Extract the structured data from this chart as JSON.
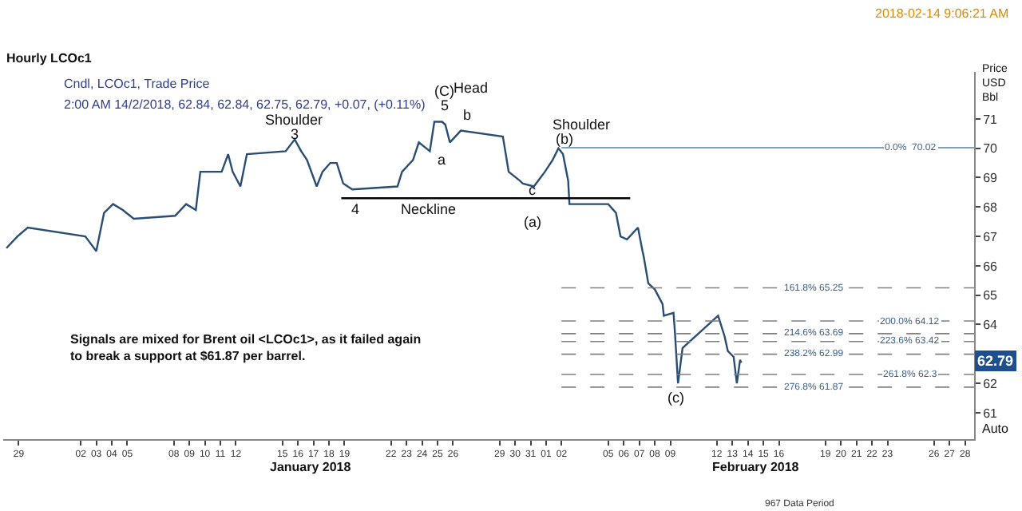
{
  "chart_data": {
    "type": "line",
    "title": "Hourly LCOc1",
    "subtitle": "Cndl, LCOc1, Trade Price",
    "ylabel": "Price USD Bbl",
    "xlim": [
      "2017-12-28T00:00",
      "2018-02-28T14:00"
    ],
    "ylim": [
      60.1,
      72.6
    ],
    "yticks": [
      61,
      62,
      {
        "value": 63,
        "label": null
      },
      64,
      65,
      66,
      67,
      68,
      69,
      70,
      71
    ],
    "xticks": [
      {
        "value": "2017-12-29",
        "label": "29"
      },
      {
        "value": "2018-01-02",
        "label": "02"
      },
      {
        "value": "2018-01-03",
        "label": "03"
      },
      {
        "value": "2018-01-04",
        "label": "04"
      },
      {
        "value": "2018-01-05",
        "label": "05"
      },
      {
        "value": "2018-01-08",
        "label": "08"
      },
      {
        "value": "2018-01-09",
        "label": "09"
      },
      {
        "value": "2018-01-10",
        "label": "10"
      },
      {
        "value": "2018-01-11",
        "label": "11"
      },
      {
        "value": "2018-01-12",
        "label": "12"
      },
      {
        "value": "2018-01-15",
        "label": "15"
      },
      {
        "value": "2018-01-16",
        "label": "16"
      },
      {
        "value": "2018-01-17",
        "label": "17"
      },
      {
        "value": "2018-01-18",
        "label": "18"
      },
      {
        "value": "2018-01-19",
        "label": "19"
      },
      {
        "value": "2018-01-22",
        "label": "22"
      },
      {
        "value": "2018-01-23",
        "label": "23"
      },
      {
        "value": "2018-01-24",
        "label": "24"
      },
      {
        "value": "2018-01-25",
        "label": "25"
      },
      {
        "value": "2018-01-26",
        "label": "26"
      },
      {
        "value": "2018-01-29",
        "label": "29"
      },
      {
        "value": "2018-01-30",
        "label": "30"
      },
      {
        "value": "2018-01-31",
        "label": "31"
      },
      {
        "value": "2018-02-01",
        "label": "01"
      },
      {
        "value": "2018-02-02",
        "label": "02"
      },
      {
        "value": "2018-02-05",
        "label": "05"
      },
      {
        "value": "2018-02-06",
        "label": "06"
      },
      {
        "value": "2018-02-07",
        "label": "07"
      },
      {
        "value": "2018-02-08",
        "label": "08"
      },
      {
        "value": "2018-02-09",
        "label": "09"
      },
      {
        "value": "2018-02-12",
        "label": "12"
      },
      {
        "value": "2018-02-13",
        "label": "13"
      },
      {
        "value": "2018-02-14",
        "label": "14"
      },
      {
        "value": "2018-02-15",
        "label": "15"
      },
      {
        "value": "2018-02-16",
        "label": "16"
      },
      {
        "value": "2018-02-19",
        "label": "19"
      },
      {
        "value": "2018-02-20",
        "label": "20"
      },
      {
        "value": "2018-02-21",
        "label": "21"
      },
      {
        "value": "2018-02-22",
        "label": "22"
      },
      {
        "value": "2018-02-23",
        "label": "23"
      },
      {
        "value": "2018-02-26",
        "label": "26"
      },
      {
        "value": "2018-02-27",
        "label": "27"
      },
      {
        "value": "2018-02-28",
        "label": "28"
      }
    ],
    "marker": "none",
    "line_style": "solid",
    "series": [
      {
        "color": "#2a4e73",
        "x": [
          "2017-12-28T05:00",
          "2017-12-28T22:00",
          "2017-12-29T14:00",
          "2018-01-02T07:00",
          "2018-01-03T00:00",
          "2018-01-03T12:00",
          "2018-01-04T02:00",
          "2018-01-04T17:00",
          "2018-01-05T10:00",
          "2018-01-08T02:00",
          "2018-01-08T19:00",
          "2018-01-09T10:00",
          "2018-01-09T17:00",
          "2018-01-10T10:00",
          "2018-01-11T02:00",
          "2018-01-11T12:00",
          "2018-01-11T19:00",
          "2018-01-12T07:00",
          "2018-01-12T17:00",
          "2018-01-15T05:00",
          "2018-01-15T19:00",
          "2018-01-16T05:00",
          "2018-01-16T14:00",
          "2018-01-17T05:00",
          "2018-01-17T14:00",
          "2018-01-18T02:00",
          "2018-01-18T12:00",
          "2018-01-18T22:00",
          "2018-01-19T12:00",
          "2018-01-22T10:00",
          "2018-01-22T17:00",
          "2018-01-23T10:00",
          "2018-01-23T19:00",
          "2018-01-24T12:00",
          "2018-01-24T19:00",
          "2018-01-25T07:00",
          "2018-01-25T12:00",
          "2018-01-25T19:00",
          "2018-01-26T12:00",
          "2018-01-29T05:00",
          "2018-01-29T14:00",
          "2018-01-30T07:00",
          "2018-01-30T12:00",
          "2018-01-31T05:00",
          "2018-01-31T22:00",
          "2018-02-01T10:00",
          "2018-02-01T19:00",
          "2018-02-02T02:00",
          "2018-02-02T10:00",
          "2018-02-02T12:00",
          "2018-02-05T00:00",
          "2018-02-05T12:00",
          "2018-02-05T19:00",
          "2018-02-06T05:00",
          "2018-02-06T22:00",
          "2018-02-07T05:00",
          "2018-02-07T07:00",
          "2018-02-07T14:00",
          "2018-02-08T00:00",
          "2018-02-08T12:00",
          "2018-02-08T14:00",
          "2018-02-09T05:00",
          "2018-02-09T07:00",
          "2018-02-09T12:00",
          "2018-02-09T19:00",
          "2018-02-12T02:00",
          "2018-02-12T12:00",
          "2018-02-12T17:00",
          "2018-02-13T02:00",
          "2018-02-13T07:00",
          "2018-02-13T12:00",
          "2018-02-13T14:00"
        ],
        "values": [
          66.6,
          67.0,
          67.3,
          67.0,
          66.5,
          67.8,
          68.1,
          67.9,
          67.6,
          67.7,
          68.1,
          67.9,
          69.2,
          69.2,
          69.2,
          69.8,
          69.2,
          68.7,
          69.8,
          69.9,
          70.3,
          69.9,
          69.6,
          68.7,
          69.2,
          69.5,
          69.5,
          68.8,
          68.6,
          68.7,
          69.2,
          69.6,
          70.2,
          69.9,
          70.9,
          70.9,
          70.8,
          70.2,
          70.6,
          70.4,
          69.2,
          68.9,
          68.8,
          68.7,
          69.2,
          69.6,
          70.0,
          69.8,
          68.9,
          68.1,
          68.1,
          67.8,
          67.0,
          66.9,
          67.3,
          66.5,
          66.3,
          65.4,
          65.2,
          64.7,
          64.3,
          64.4,
          63.8,
          62.0,
          63.2,
          64.3,
          63.6,
          63.1,
          62.9,
          62.0,
          62.8,
          62.7
        ]
      },
      {
        "color": "#000000",
        "x": [
          "2018-01-18T19:00",
          "2018-02-06T10:00"
        ],
        "values": [
          68.3,
          68.3
        ]
      }
    ],
    "ref_lines": [
      {
        "axis": "y",
        "value": 70.02,
        "label": "0.0%  70.02",
        "color": "#5a7fa8",
        "line_style": "solid"
      },
      {
        "axis": "y",
        "value": 65.25,
        "label": "161.8% 65.25",
        "color": "#808080",
        "line_style": "dashed"
      },
      {
        "axis": "y",
        "value": 64.12,
        "label": "200.0% 64.12",
        "color": "#808080",
        "line_style": "dashed"
      },
      {
        "axis": "y",
        "value": 63.69,
        "label": "214.6% 63.69",
        "color": "#808080",
        "line_style": "dashed"
      },
      {
        "axis": "y",
        "value": 63.42,
        "label": "223.6% 63.42",
        "color": "#808080",
        "line_style": "dashed"
      },
      {
        "axis": "y",
        "value": 62.99,
        "label": "238.2% 62.99",
        "color": "#808080",
        "line_style": "dashed"
      },
      {
        "axis": "y",
        "value": 62.3,
        "label": "261.8% 62.3",
        "color": "#808080",
        "line_style": "dashed"
      },
      {
        "axis": "y",
        "value": 61.87,
        "label": "276.8% 61.87",
        "color": "#808080",
        "line_style": "dashed"
      }
    ],
    "annotations": [
      "2:00 AM 14/2/2018, 62.84, 62.84, 62.75, 62.79, +0.07, (+0.11%)",
      "2018-02-14 9:06:21 AM",
      "Signals are mixed for Brent oil <LCOc1>, as it failed again to break a support at $61.87 per barrel.",
      "Auto",
      "967 Data Period",
      "January 2018",
      "February 2018",
      "Shoulder",
      "3",
      "(C)",
      "5",
      "Head",
      "b",
      "a",
      "4",
      "Neckline",
      "c",
      "(a)",
      "Shoulder",
      "(b)",
      "(c)",
      "62.79"
    ]
  }
}
